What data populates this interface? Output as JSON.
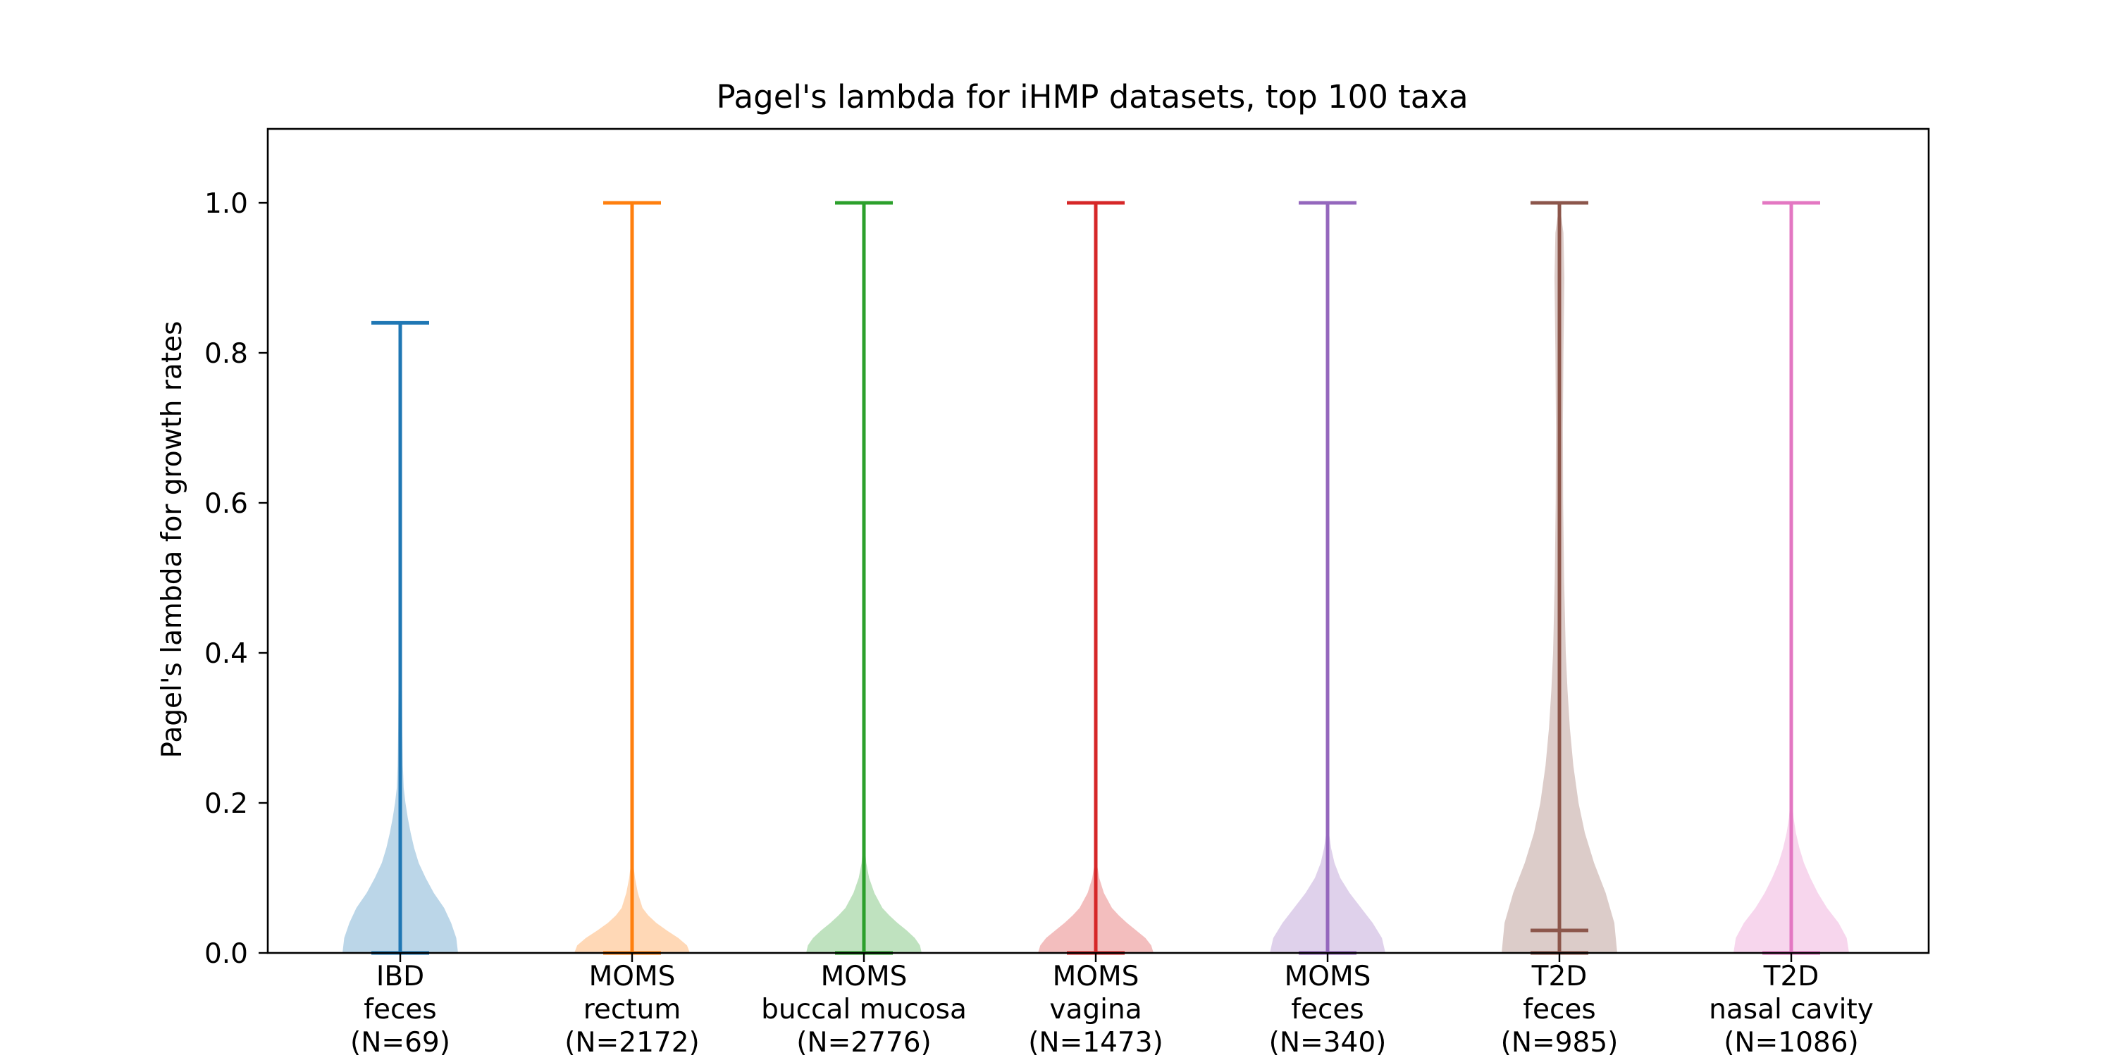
{
  "chart_data": {
    "type": "violin",
    "title": "Pagel's lambda for iHMP datasets, top 100 taxa",
    "xlabel": "",
    "ylabel": "Pagel's lambda for growth rates",
    "ylim": [
      -0.0,
      1.1
    ],
    "yticks": [
      "0.0",
      "0.2",
      "0.4",
      "0.6",
      "0.8",
      "1.0"
    ],
    "legend": false,
    "grid": false,
    "categories": [
      [
        "IBD",
        "feces",
        "(N=69)"
      ],
      [
        "MOMS",
        "rectum",
        "(N=2172)"
      ],
      [
        "MOMS",
        "buccal mucosa",
        "(N=2776)"
      ],
      [
        "MOMS",
        "vagina",
        "(N=1473)"
      ],
      [
        "MOMS",
        "feces",
        "(N=340)"
      ],
      [
        "T2D",
        "feces",
        "(N=985)"
      ],
      [
        "T2D",
        "nasal cavity",
        "(N=1086)"
      ]
    ],
    "series": [
      {
        "min": 0.0,
        "max": 0.84,
        "median": 0.0,
        "color": "#1f77b4",
        "density": [
          [
            0.0,
            1.0
          ],
          [
            0.02,
            0.97
          ],
          [
            0.04,
            0.88
          ],
          [
            0.06,
            0.76
          ],
          [
            0.08,
            0.58
          ],
          [
            0.1,
            0.44
          ],
          [
            0.12,
            0.32
          ],
          [
            0.14,
            0.24
          ],
          [
            0.16,
            0.18
          ],
          [
            0.18,
            0.13
          ],
          [
            0.2,
            0.09
          ],
          [
            0.22,
            0.06
          ],
          [
            0.25,
            0.045
          ],
          [
            0.3,
            0.035
          ],
          [
            0.35,
            0.03
          ],
          [
            0.4,
            0.022
          ],
          [
            0.45,
            0.012
          ],
          [
            0.5,
            0.004
          ],
          [
            0.55,
            0.0
          ]
        ]
      },
      {
        "min": 0.0,
        "max": 1.0,
        "median": 0.0,
        "color": "#ff7f0e",
        "density": [
          [
            0.0,
            1.0
          ],
          [
            0.01,
            0.95
          ],
          [
            0.02,
            0.8
          ],
          [
            0.03,
            0.6
          ],
          [
            0.04,
            0.42
          ],
          [
            0.05,
            0.28
          ],
          [
            0.06,
            0.18
          ],
          [
            0.08,
            0.1
          ],
          [
            0.1,
            0.05
          ],
          [
            0.12,
            0.02
          ],
          [
            0.15,
            0.0
          ]
        ]
      },
      {
        "min": 0.0,
        "max": 1.0,
        "median": 0.0,
        "color": "#2ca02c",
        "density": [
          [
            0.0,
            1.0
          ],
          [
            0.01,
            0.97
          ],
          [
            0.02,
            0.88
          ],
          [
            0.03,
            0.74
          ],
          [
            0.04,
            0.58
          ],
          [
            0.05,
            0.44
          ],
          [
            0.06,
            0.32
          ],
          [
            0.08,
            0.18
          ],
          [
            0.1,
            0.09
          ],
          [
            0.12,
            0.04
          ],
          [
            0.14,
            0.02
          ],
          [
            0.17,
            0.0
          ]
        ]
      },
      {
        "min": 0.0,
        "max": 1.0,
        "median": 0.0,
        "color": "#d62728",
        "density": [
          [
            0.0,
            1.0
          ],
          [
            0.01,
            0.96
          ],
          [
            0.02,
            0.86
          ],
          [
            0.03,
            0.7
          ],
          [
            0.04,
            0.54
          ],
          [
            0.05,
            0.4
          ],
          [
            0.06,
            0.28
          ],
          [
            0.08,
            0.14
          ],
          [
            0.1,
            0.06
          ],
          [
            0.12,
            0.02
          ],
          [
            0.14,
            0.0
          ]
        ]
      },
      {
        "min": 0.0,
        "max": 1.0,
        "median": 0.0,
        "color": "#9467bd",
        "density": [
          [
            0.0,
            1.0
          ],
          [
            0.02,
            0.94
          ],
          [
            0.04,
            0.78
          ],
          [
            0.06,
            0.58
          ],
          [
            0.08,
            0.38
          ],
          [
            0.1,
            0.22
          ],
          [
            0.12,
            0.12
          ],
          [
            0.14,
            0.06
          ],
          [
            0.16,
            0.025
          ],
          [
            0.19,
            0.0
          ]
        ]
      },
      {
        "min": 0.0,
        "max": 1.0,
        "median": 0.03,
        "color": "#8c564b",
        "density": [
          [
            0.0,
            1.0
          ],
          [
            0.04,
            0.95
          ],
          [
            0.08,
            0.8
          ],
          [
            0.12,
            0.6
          ],
          [
            0.16,
            0.44
          ],
          [
            0.2,
            0.33
          ],
          [
            0.25,
            0.24
          ],
          [
            0.3,
            0.18
          ],
          [
            0.35,
            0.14
          ],
          [
            0.4,
            0.11
          ],
          [
            0.5,
            0.08
          ],
          [
            0.6,
            0.065
          ],
          [
            0.7,
            0.06
          ],
          [
            0.8,
            0.07
          ],
          [
            0.9,
            0.085
          ],
          [
            0.96,
            0.07
          ],
          [
            1.0,
            0.0
          ]
        ]
      },
      {
        "min": 0.0,
        "max": 1.0,
        "median": 0.0,
        "color": "#e377c2",
        "density": [
          [
            0.0,
            1.0
          ],
          [
            0.02,
            0.96
          ],
          [
            0.04,
            0.82
          ],
          [
            0.06,
            0.62
          ],
          [
            0.08,
            0.46
          ],
          [
            0.1,
            0.33
          ],
          [
            0.12,
            0.22
          ],
          [
            0.14,
            0.14
          ],
          [
            0.16,
            0.08
          ],
          [
            0.18,
            0.04
          ],
          [
            0.2,
            0.02
          ],
          [
            0.23,
            0.0
          ]
        ]
      }
    ]
  }
}
